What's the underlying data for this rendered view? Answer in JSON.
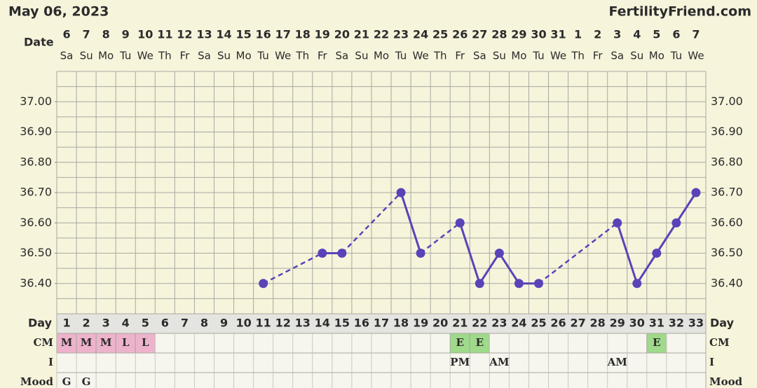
{
  "chart_data": {
    "type": "line",
    "title": "May 06, 2023",
    "brand": "FertilityFriend.com",
    "date_label": "Date",
    "dates": [
      6,
      7,
      8,
      9,
      10,
      11,
      12,
      13,
      14,
      15,
      16,
      17,
      18,
      19,
      20,
      21,
      22,
      23,
      24,
      25,
      26,
      27,
      28,
      29,
      30,
      31,
      1,
      2,
      3,
      4,
      5,
      6,
      7
    ],
    "weekdays": [
      "Sa",
      "Su",
      "Mo",
      "Tu",
      "We",
      "Th",
      "Fr",
      "Sa",
      "Su",
      "Mo",
      "Tu",
      "We",
      "Th",
      "Fr",
      "Sa",
      "Su",
      "Mo",
      "Tu",
      "We",
      "Th",
      "Fr",
      "Sa",
      "Su",
      "Mo",
      "Tu",
      "We",
      "Th",
      "Fr",
      "Sa",
      "Su",
      "Mo",
      "Tu",
      "We"
    ],
    "day_label": "Day",
    "x": [
      1,
      2,
      3,
      4,
      5,
      6,
      7,
      8,
      9,
      10,
      11,
      12,
      13,
      14,
      15,
      16,
      17,
      18,
      19,
      20,
      21,
      22,
      23,
      24,
      25,
      26,
      27,
      28,
      29,
      30,
      31,
      32,
      33
    ],
    "values": [
      null,
      null,
      null,
      null,
      null,
      null,
      null,
      null,
      null,
      null,
      36.4,
      null,
      null,
      36.5,
      36.5,
      null,
      null,
      36.7,
      36.5,
      null,
      36.6,
      36.4,
      36.5,
      36.4,
      36.4,
      null,
      null,
      null,
      36.6,
      36.4,
      36.5,
      36.6,
      36.7
    ],
    "color": "#5a43b8",
    "ylim": [
      36.3,
      37.1
    ],
    "yticks": [
      {
        "value": 36.4,
        "label": "36.40"
      },
      {
        "value": 36.5,
        "label": "36.50"
      },
      {
        "value": 36.6,
        "label": "36.60"
      },
      {
        "value": 36.7,
        "label": "36.70"
      },
      {
        "value": 36.8,
        "label": "36.80"
      },
      {
        "value": 36.9,
        "label": "36.90"
      },
      {
        "value": 37.0,
        "label": "37.00"
      }
    ],
    "grid": true,
    "grid_step": 0.05,
    "rows": [
      {
        "label": "CM",
        "cells": [
          "M",
          "M",
          "M",
          "L",
          "L",
          null,
          null,
          null,
          null,
          null,
          null,
          null,
          null,
          null,
          null,
          null,
          null,
          null,
          null,
          null,
          "E",
          "E",
          null,
          null,
          null,
          null,
          null,
          null,
          null,
          null,
          "E",
          null,
          null
        ]
      },
      {
        "label": "I",
        "cells": [
          null,
          null,
          null,
          null,
          null,
          null,
          null,
          null,
          null,
          null,
          null,
          null,
          null,
          null,
          null,
          null,
          null,
          null,
          null,
          null,
          "PM",
          null,
          "AM",
          null,
          null,
          null,
          null,
          null,
          "AM",
          null,
          null,
          null,
          null
        ]
      },
      {
        "label": "Mood",
        "cells": [
          "G",
          "G",
          null,
          null,
          null,
          null,
          null,
          null,
          null,
          null,
          null,
          null,
          null,
          null,
          null,
          null,
          null,
          null,
          null,
          null,
          null,
          null,
          null,
          null,
          null,
          null,
          null,
          null,
          null,
          null,
          null,
          null,
          null
        ]
      }
    ],
    "cell_colors": {
      "M": "#eeb3cc",
      "L": "#eeb3cc",
      "E": "#9fd98a"
    }
  }
}
